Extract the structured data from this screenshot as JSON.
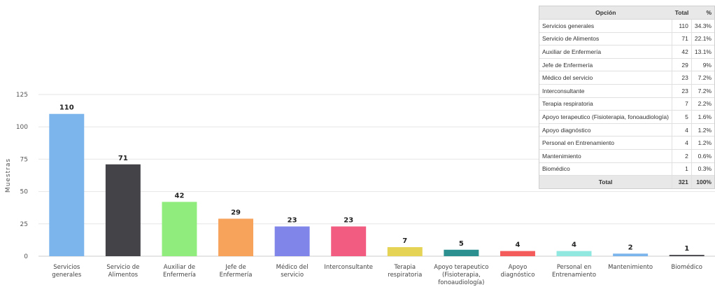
{
  "chart_data": {
    "type": "bar",
    "ylabel": "Muestras",
    "ylim": [
      0,
      125
    ],
    "yticks": [
      0,
      25,
      50,
      75,
      100,
      125
    ],
    "grid": true,
    "categories": [
      "Servicios generales",
      "Servicio de Alimentos",
      "Auxiliar de Enfermería",
      "Jefe de Enfermería",
      "Médico del servicio",
      "Interconsultante",
      "Terapia respiratoria",
      "Apoyo terapeutico (Fisioterapia, fonoaudiología)",
      "Apoyo diagnóstico",
      "Personal en Entrenamiento",
      "Mantenimiento",
      "Biomédico"
    ],
    "category_label_lines": [
      [
        "Servicios",
        "generales"
      ],
      [
        "Servicio de",
        "Alimentos"
      ],
      [
        "Auxiliar de",
        "Enfermería"
      ],
      [
        "Jefe de",
        "Enfermería"
      ],
      [
        "Médico del",
        "servicio"
      ],
      [
        "Interconsultante"
      ],
      [
        "Terapia",
        "respiratoria"
      ],
      [
        "Apoyo terapeutico",
        "(Fisioterapia,",
        "fonoaudiología)"
      ],
      [
        "Apoyo",
        "diagnóstico"
      ],
      [
        "Personal en",
        "Entrenamiento"
      ],
      [
        "Mantenimiento"
      ],
      [
        "Biomédico"
      ]
    ],
    "values": [
      110,
      71,
      42,
      29,
      23,
      23,
      7,
      5,
      4,
      4,
      2,
      1
    ],
    "colors": [
      "#7cb5ec",
      "#434348",
      "#90ed7d",
      "#f7a35c",
      "#8085e9",
      "#f15c80",
      "#e4d354",
      "#2b908f",
      "#f45b5b",
      "#91e8e1",
      "#7cb5ec",
      "#434348"
    ]
  },
  "summary_table": {
    "headers": [
      "Opción",
      "Total",
      "%"
    ],
    "rows": [
      {
        "option": "Servicios generales",
        "total": "110",
        "percent": "34.3%"
      },
      {
        "option": "Servicio de Alimentos",
        "total": "71",
        "percent": "22.1%"
      },
      {
        "option": "Auxiliar de Enfermería",
        "total": "42",
        "percent": "13.1%"
      },
      {
        "option": "Jefe de Enfermería",
        "total": "29",
        "percent": "9%"
      },
      {
        "option": "Médico del servicio",
        "total": "23",
        "percent": "7.2%"
      },
      {
        "option": "Interconsultante",
        "total": "23",
        "percent": "7.2%"
      },
      {
        "option": "Terapia respiratoria",
        "total": "7",
        "percent": "2.2%"
      },
      {
        "option": "Apoyo terapeutico (Fisioterapia, fonoaudiología)",
        "total": "5",
        "percent": "1.6%"
      },
      {
        "option": "Apoyo diagnóstico",
        "total": "4",
        "percent": "1.2%"
      },
      {
        "option": "Personal en Entrenamiento",
        "total": "4",
        "percent": "1.2%"
      },
      {
        "option": "Mantenimiento",
        "total": "2",
        "percent": "0.6%"
      },
      {
        "option": "Biomédico",
        "total": "1",
        "percent": "0.3%"
      }
    ],
    "total_row": {
      "label": "Total",
      "total": "321",
      "percent": "100%"
    }
  }
}
